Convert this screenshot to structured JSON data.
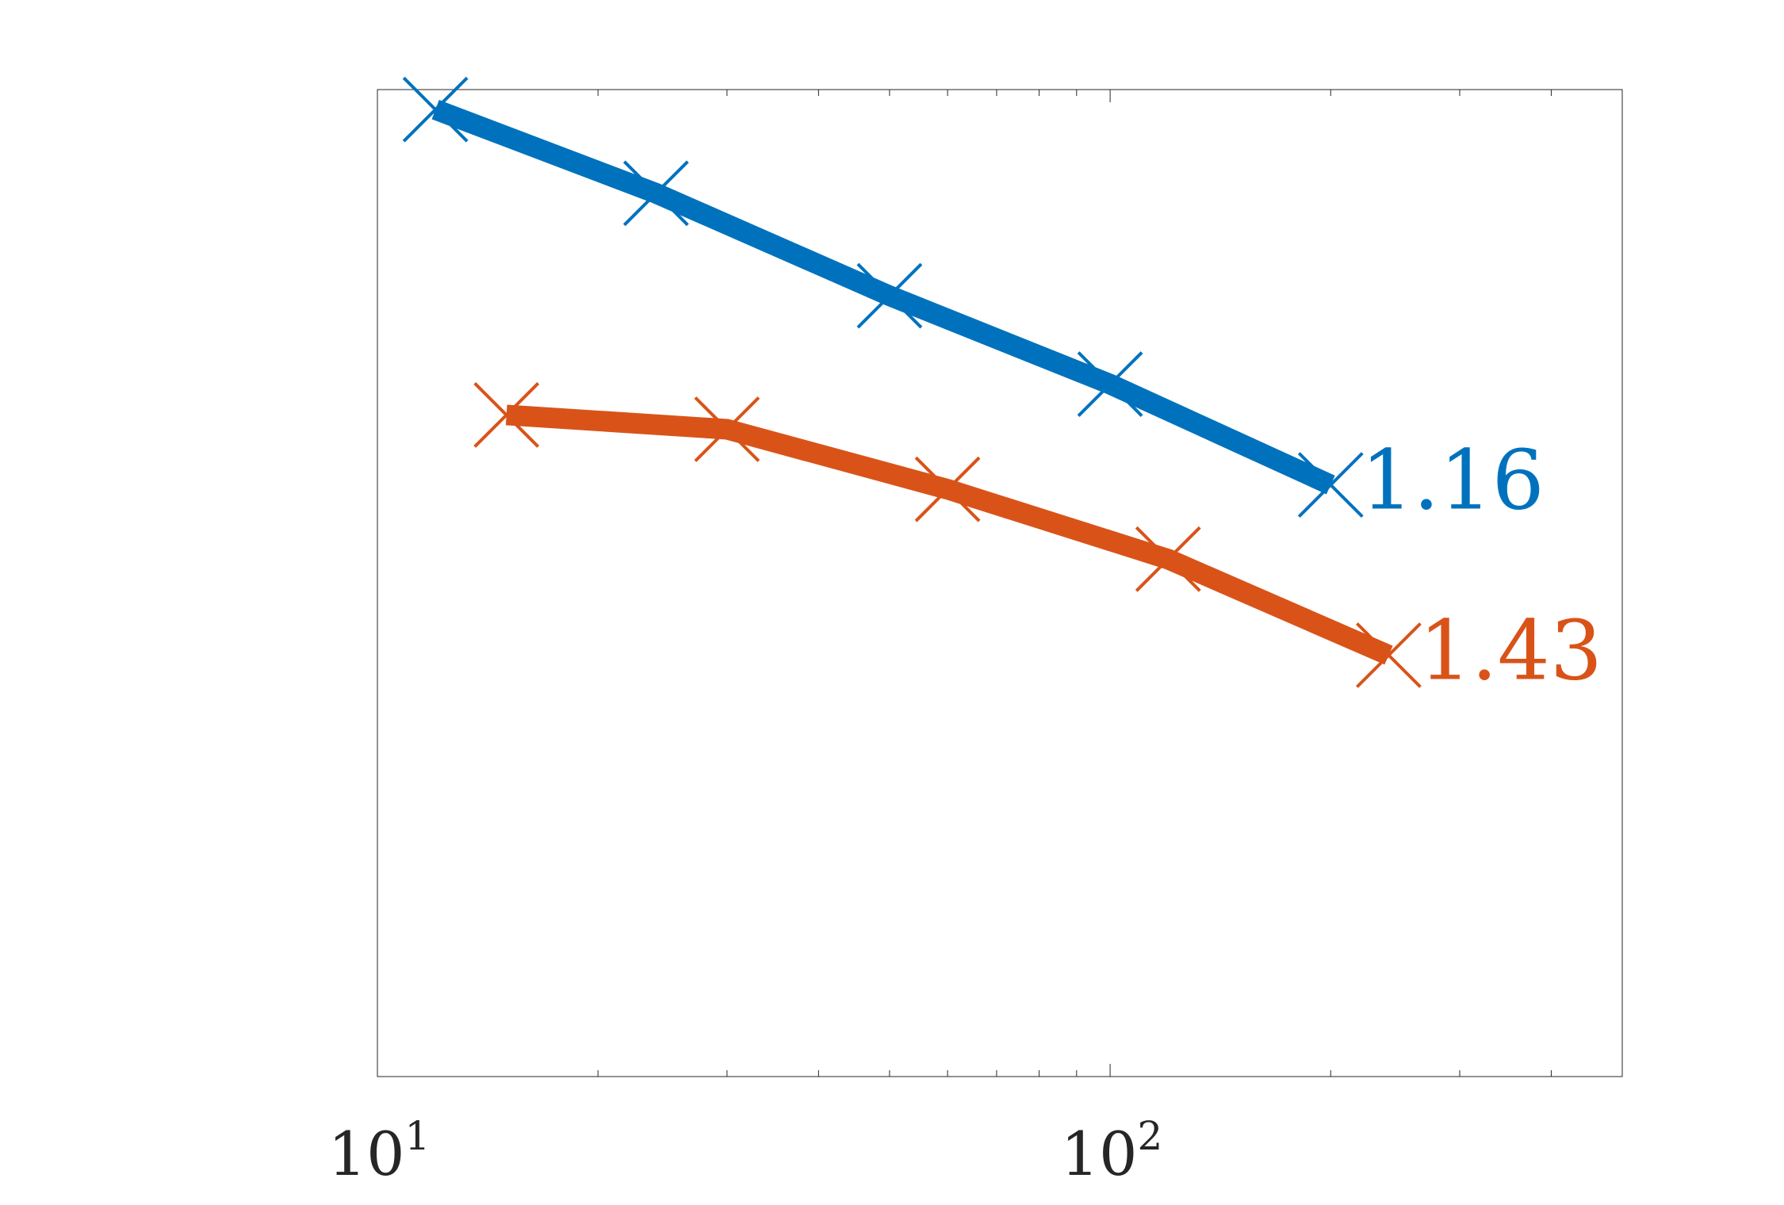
{
  "chart_data": {
    "type": "line",
    "xscale": "log",
    "yscale": "log",
    "xlim": [
      10,
      500
    ],
    "ylim": [
      0.0001,
      1
    ],
    "grid": false,
    "legend": "none",
    "x_ticks": [
      {
        "value": 10,
        "base": "10",
        "exp": "1"
      },
      {
        "value": 100,
        "base": "10",
        "exp": "2"
      }
    ],
    "series": [
      {
        "color": "#0072BD",
        "end_label": "1.16",
        "x": [
          12,
          24,
          50,
          100,
          200
        ],
        "y": [
          0.83,
          0.38,
          0.146,
          0.064,
          0.025
        ]
      },
      {
        "color": "#D95319",
        "end_label": "1.43",
        "x": [
          15,
          30,
          60,
          120,
          240
        ],
        "y": [
          0.048,
          0.042,
          0.024,
          0.0125,
          0.0051
        ]
      }
    ]
  }
}
